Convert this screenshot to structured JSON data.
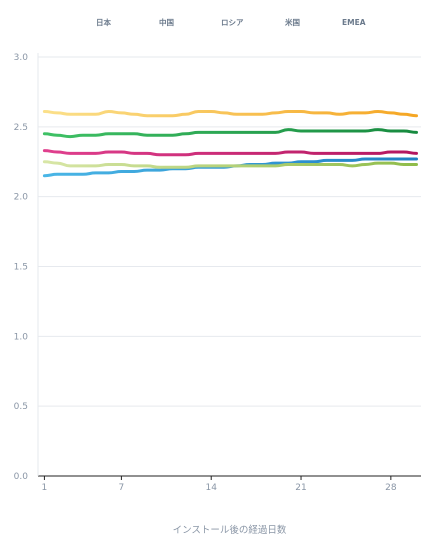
{
  "chart_data": {
    "type": "line",
    "title": "",
    "xlabel": "インストール後の経過日数",
    "ylabel": "",
    "xlim": [
      1,
      30
    ],
    "ylim": [
      0,
      3
    ],
    "x_ticks": [
      1,
      7,
      14,
      21,
      28
    ],
    "x_tick_labels": [
      "1",
      "7",
      "14",
      "21",
      "28"
    ],
    "y_ticks": [
      0,
      0.5,
      1,
      1.5,
      2,
      2.5,
      3
    ],
    "y_tick_labels": [
      "0.0",
      "0.5",
      "1.0",
      "1.5",
      "2.0",
      "2.5",
      "3.0"
    ],
    "grid": true,
    "legend_position": "top",
    "x": [
      1,
      2,
      3,
      4,
      5,
      6,
      7,
      8,
      9,
      10,
      11,
      12,
      13,
      14,
      15,
      16,
      17,
      18,
      19,
      20,
      21,
      22,
      23,
      24,
      25,
      26,
      27,
      28,
      29,
      30
    ],
    "series": [
      {
        "name": "日本",
        "color_start": "#fbe08a",
        "color_end": "#f5a623",
        "values": [
          2.61,
          2.6,
          2.59,
          2.59,
          2.59,
          2.61,
          2.6,
          2.59,
          2.58,
          2.58,
          2.58,
          2.59,
          2.61,
          2.61,
          2.6,
          2.59,
          2.59,
          2.59,
          2.6,
          2.61,
          2.61,
          2.6,
          2.6,
          2.59,
          2.6,
          2.6,
          2.61,
          2.6,
          2.59,
          2.58
        ]
      },
      {
        "name": "中国",
        "color_start": "#4ab6e6",
        "color_end": "#1f7fc4",
        "values": [
          2.15,
          2.16,
          2.16,
          2.16,
          2.17,
          2.17,
          2.18,
          2.18,
          2.19,
          2.19,
          2.2,
          2.2,
          2.21,
          2.21,
          2.21,
          2.22,
          2.23,
          2.23,
          2.24,
          2.24,
          2.25,
          2.25,
          2.26,
          2.26,
          2.26,
          2.27,
          2.27,
          2.27,
          2.27,
          2.27
        ]
      },
      {
        "name": "ロシア",
        "color_start": "#3fc165",
        "color_end": "#178a3f",
        "values": [
          2.45,
          2.44,
          2.43,
          2.44,
          2.44,
          2.45,
          2.45,
          2.45,
          2.44,
          2.44,
          2.44,
          2.45,
          2.46,
          2.46,
          2.46,
          2.46,
          2.46,
          2.46,
          2.46,
          2.48,
          2.47,
          2.47,
          2.47,
          2.47,
          2.47,
          2.47,
          2.48,
          2.47,
          2.47,
          2.46
        ]
      },
      {
        "name": "米国",
        "color_start": "#d8e6a6",
        "color_end": "#8fbc4a",
        "values": [
          2.25,
          2.24,
          2.22,
          2.22,
          2.22,
          2.23,
          2.23,
          2.22,
          2.22,
          2.21,
          2.21,
          2.21,
          2.22,
          2.22,
          2.22,
          2.22,
          2.22,
          2.22,
          2.22,
          2.23,
          2.23,
          2.23,
          2.23,
          2.23,
          2.22,
          2.23,
          2.24,
          2.24,
          2.23,
          2.23
        ]
      },
      {
        "name": "EMEA",
        "color_start": "#e0408e",
        "color_end": "#b3165f",
        "values": [
          2.33,
          2.32,
          2.31,
          2.31,
          2.31,
          2.32,
          2.32,
          2.31,
          2.31,
          2.3,
          2.3,
          2.3,
          2.31,
          2.31,
          2.31,
          2.31,
          2.31,
          2.31,
          2.31,
          2.32,
          2.32,
          2.31,
          2.31,
          2.31,
          2.31,
          2.31,
          2.31,
          2.32,
          2.32,
          2.31
        ]
      }
    ]
  }
}
